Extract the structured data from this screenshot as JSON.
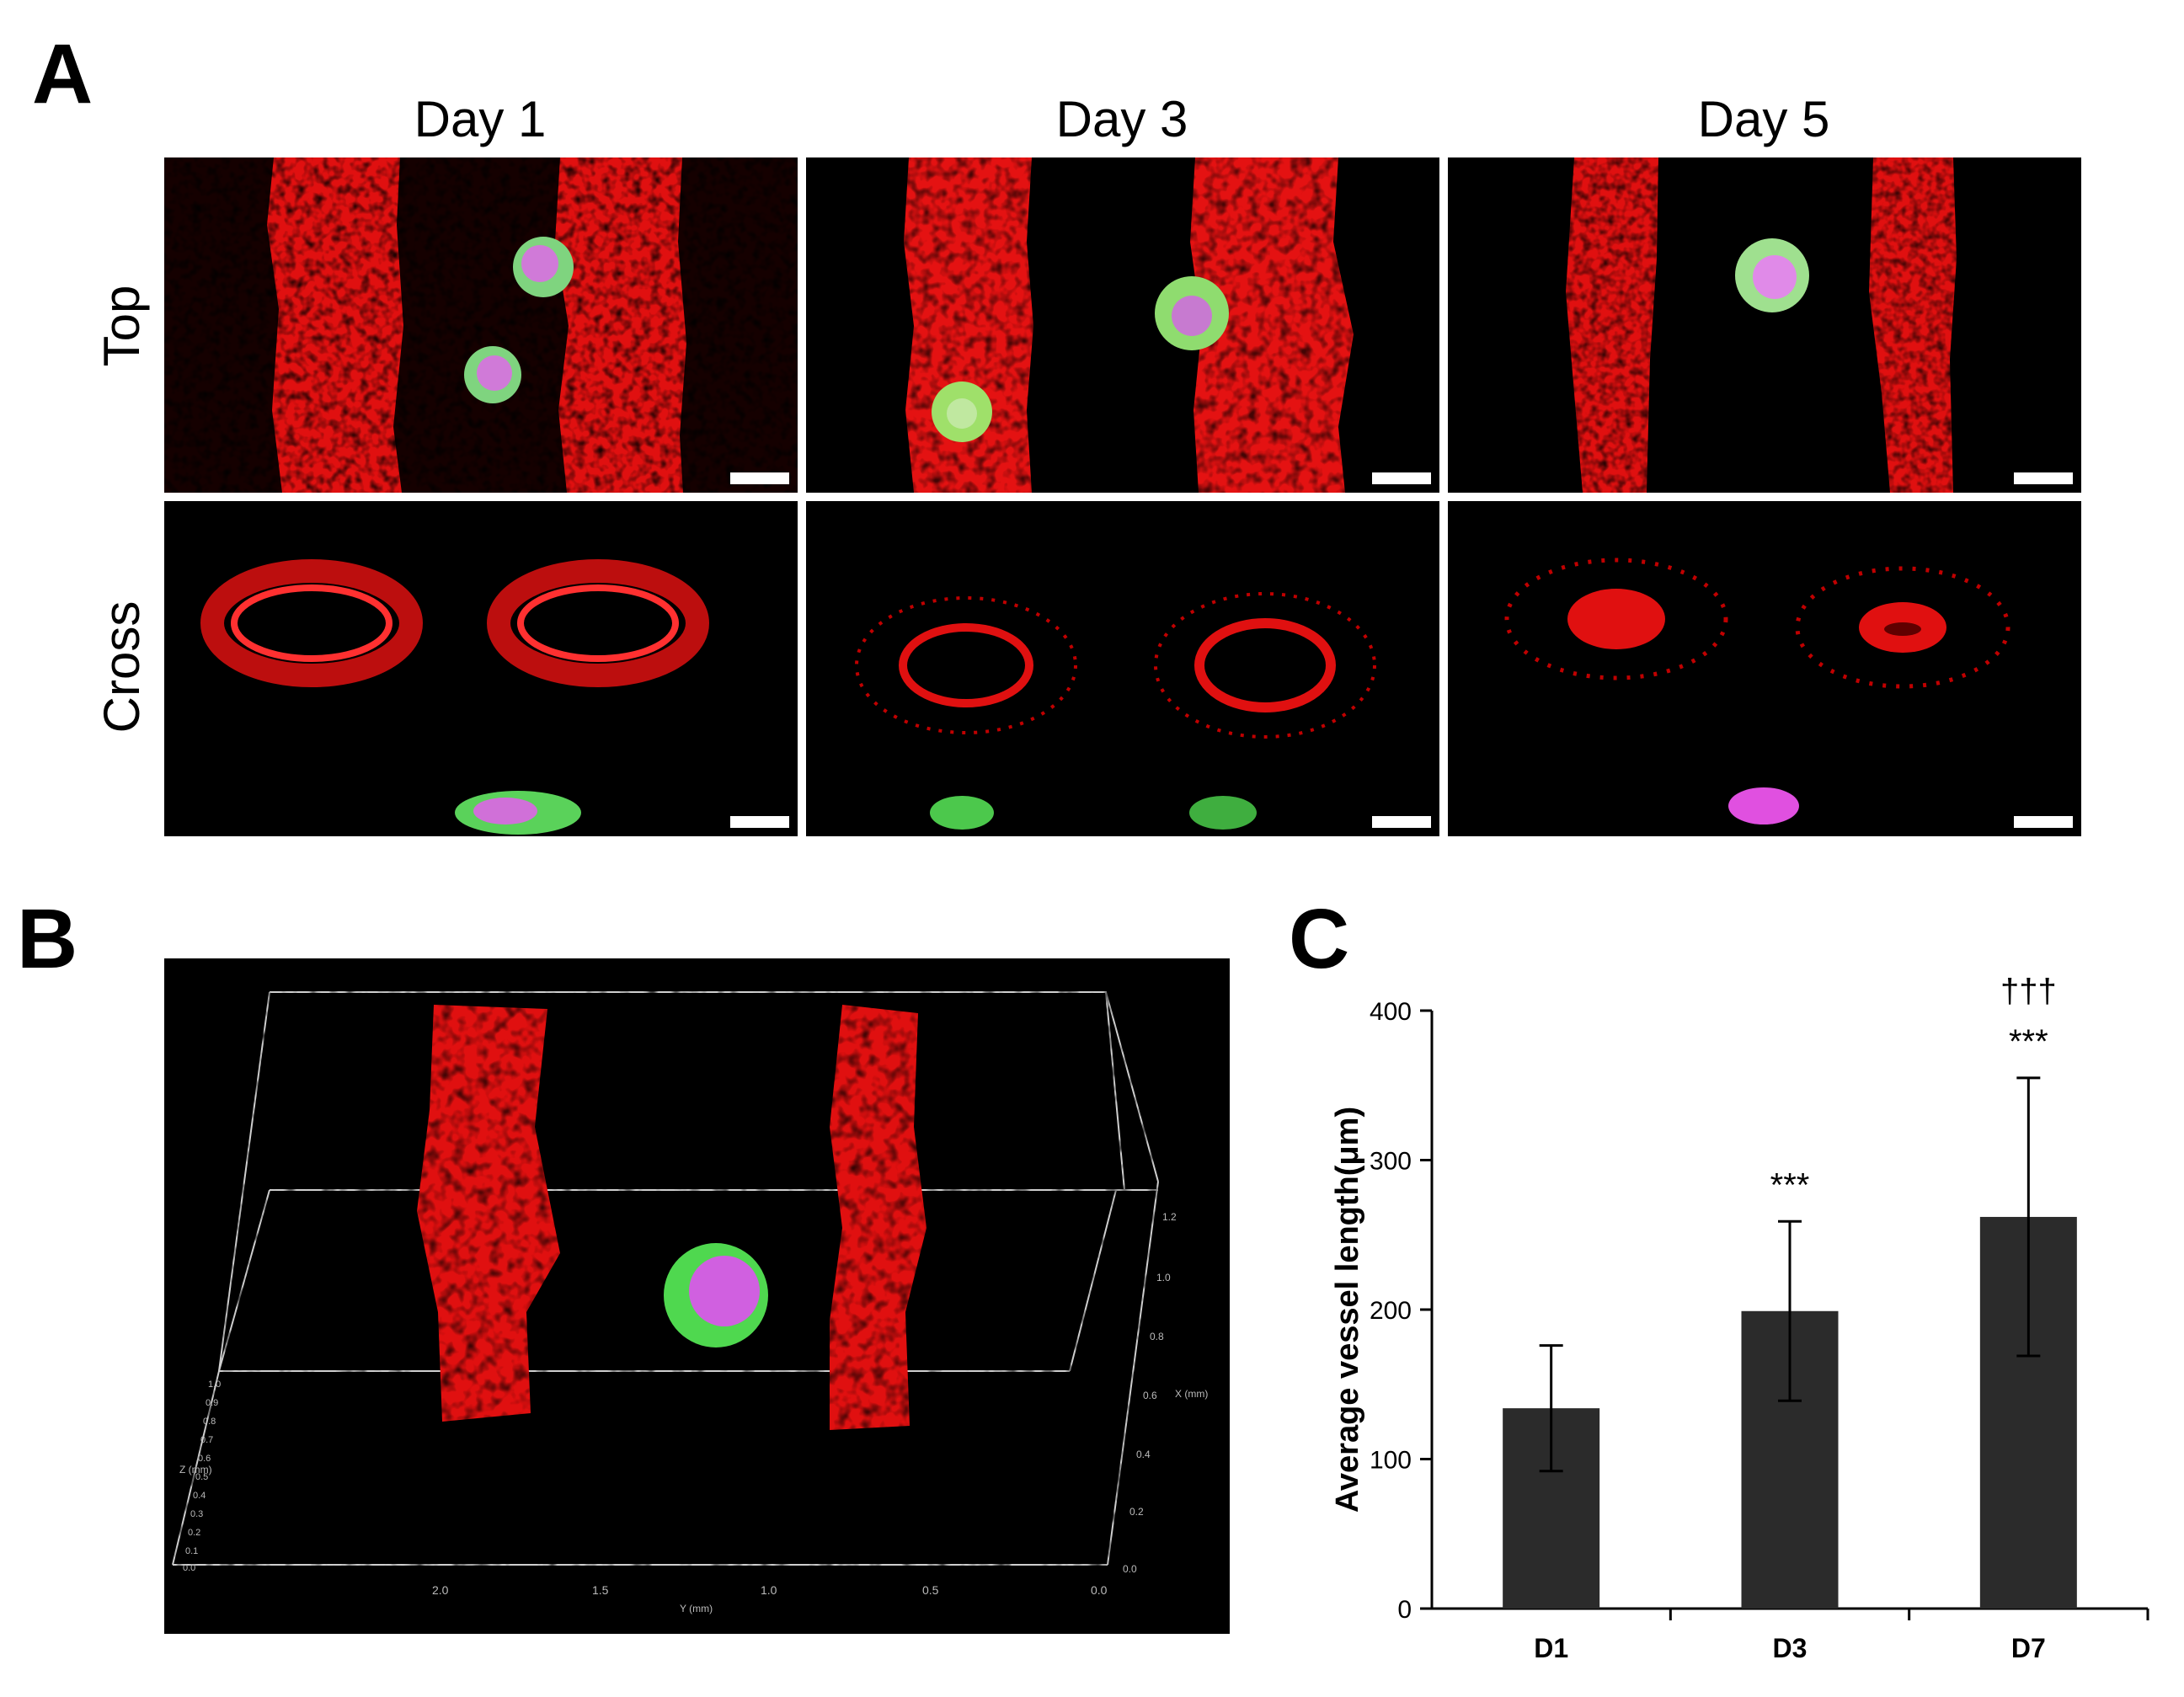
{
  "panel_a": {
    "letter": "A",
    "columns": [
      "Day 1",
      "Day 3",
      "Day 5"
    ],
    "rows": [
      "Top",
      "Cross"
    ]
  },
  "panel_b": {
    "letter": "B",
    "axis_labels": {
      "x_axis": "X (mm)",
      "y_axis": "Y (mm)",
      "z_axis": "Z (mm)"
    },
    "y_ticks": [
      "2.0",
      "1.5",
      "1.0",
      "0.5",
      "0.0"
    ],
    "x_ticks": [
      "1.2",
      "1.0",
      "0.8",
      "0.6",
      "0.4",
      "0.2",
      "0.0"
    ],
    "z_ticks": [
      "1.0",
      "0.9",
      "0.8",
      "0.7",
      "0.6",
      "0.5",
      "0.4",
      "0.3",
      "0.2",
      "0.1",
      "0.0"
    ]
  },
  "panel_c": {
    "letter": "C",
    "colors": {
      "bar": "#2b2b2b"
    }
  },
  "chart_data": {
    "type": "bar",
    "categories": [
      "D1",
      "D3",
      "D7"
    ],
    "values": [
      134,
      199,
      262
    ],
    "errors": [
      42,
      60,
      93
    ],
    "ylabel": "Average vessel length(μm)",
    "ylim": [
      0,
      400
    ],
    "yticks": [
      0,
      100,
      200,
      300,
      400
    ],
    "annotations": [
      {
        "category": "D3",
        "text": "***"
      },
      {
        "category": "D7",
        "text": "***"
      },
      {
        "category": "D7",
        "text": "†††"
      }
    ]
  }
}
